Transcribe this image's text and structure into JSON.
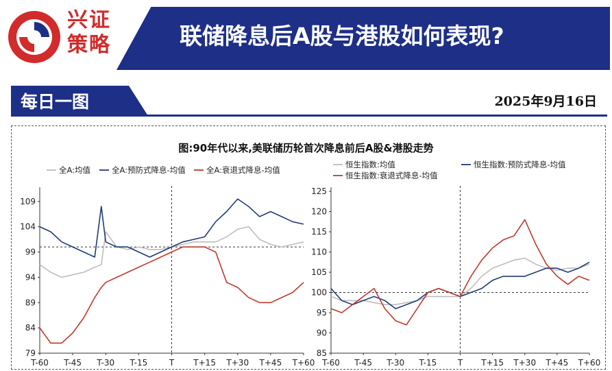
{
  "header": {
    "brand_line1": "兴证",
    "brand_line2": "策略",
    "title": "联储降息后A股与港股如何表现?",
    "logo_colors": {
      "red": "#d22b2b",
      "navy": "#1d2f86"
    }
  },
  "section": {
    "tag": "每日一图",
    "date": "2025年9月16日"
  },
  "figure": {
    "title": "图:90年代以来,美联储历轮首次降息前后A股&港股走势"
  },
  "chart_data": [
    {
      "type": "line",
      "x_ticks": [
        "T-60",
        "T-45",
        "T-30",
        "T-15",
        "T",
        "T+15",
        "T+30",
        "T+45",
        "T+60"
      ],
      "x": [
        -60,
        -55,
        -50,
        -45,
        -40,
        -35,
        -32,
        -30,
        -25,
        -20,
        -15,
        -10,
        -5,
        0,
        5,
        10,
        15,
        20,
        25,
        30,
        35,
        40,
        45,
        50,
        55,
        60
      ],
      "ylim": [
        79,
        111
      ],
      "yticks": [
        79,
        84,
        89,
        94,
        99,
        104,
        109
      ],
      "reference_y": 100,
      "grid": false,
      "legend": "top",
      "series": [
        {
          "name": "全A:均值",
          "color": "#bdbdbd",
          "values": [
            96.5,
            95,
            94,
            94.5,
            95,
            96,
            96.5,
            103,
            100,
            99.5,
            100,
            99.5,
            99.5,
            100,
            100.5,
            101,
            101,
            101,
            102,
            103.5,
            104,
            101.5,
            100.5,
            100,
            100.5,
            101
          ]
        },
        {
          "name": "全A:预防式降息-均值",
          "color": "#1f3a7a",
          "values": [
            104,
            103,
            101,
            100,
            99,
            98,
            108,
            101,
            100,
            100,
            99,
            98,
            99,
            100,
            101,
            101.5,
            102,
            105,
            107,
            109.5,
            108,
            106,
            107,
            106,
            105,
            104.5
          ]
        },
        {
          "name": "全A:衰退式降息-均值",
          "color": "#c0392b",
          "values": [
            84,
            81,
            81,
            83,
            86,
            90,
            92,
            93,
            94,
            95,
            96,
            97,
            98,
            99,
            100,
            100,
            100,
            99,
            93,
            92,
            90,
            89,
            89,
            90,
            91,
            93
          ]
        }
      ]
    },
    {
      "type": "line",
      "x_ticks": [
        "T-60",
        "T-45",
        "T-30",
        "T-15",
        "T",
        "T+15",
        "T+30",
        "T+45",
        "T+60"
      ],
      "x": [
        -60,
        -55,
        -50,
        -45,
        -40,
        -35,
        -30,
        -25,
        -20,
        -15,
        -10,
        -5,
        0,
        5,
        10,
        15,
        20,
        25,
        30,
        35,
        40,
        45,
        50,
        55,
        60
      ],
      "ylim": [
        85,
        125
      ],
      "yticks": [
        85,
        90,
        95,
        100,
        105,
        110,
        115,
        120,
        125
      ],
      "reference_y": 100,
      "grid": false,
      "legend": "top",
      "series": [
        {
          "name": "恒生指数:均值",
          "color": "#bdbdbd",
          "values": [
            99,
            98,
            98,
            98,
            97.5,
            97,
            97,
            97.5,
            98,
            99,
            99,
            99,
            99,
            101,
            104,
            106,
            107,
            108,
            108.5,
            107,
            106,
            105.5,
            106,
            106,
            107
          ]
        },
        {
          "name": "恒生指数:预防式降息-均值",
          "color": "#1f3a7a",
          "values": [
            101,
            98,
            97,
            98,
            99,
            98,
            96,
            97,
            98,
            100,
            101,
            100,
            99,
            100,
            101,
            103,
            104,
            104,
            104,
            105,
            106,
            106,
            105,
            106,
            107.5
          ]
        },
        {
          "name": "恒生指数:衰退式降息-均值",
          "color": "#c0392b",
          "values": [
            96,
            95,
            97,
            99,
            101,
            96,
            93,
            92,
            96,
            100,
            101,
            100,
            99,
            104,
            108,
            111,
            113,
            114,
            118,
            112,
            107,
            104,
            102,
            104,
            103
          ]
        }
      ]
    }
  ]
}
